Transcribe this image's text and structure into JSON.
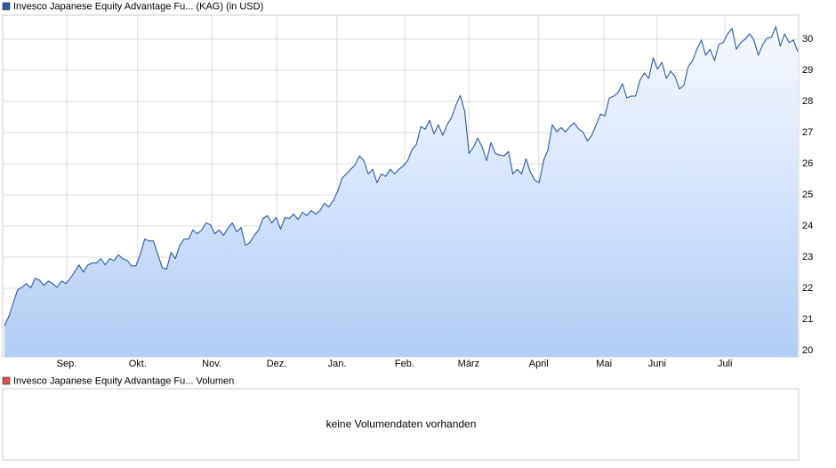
{
  "chart_data": {
    "type": "area",
    "series": [
      {
        "name": "Invesco Japanese Equity Advantage Fu... (KAG) (in USD)",
        "color": "#2a5aa8",
        "values": [
          20.8,
          21.09,
          21.52,
          21.95,
          22.03,
          22.15,
          22.01,
          22.32,
          22.26,
          22.09,
          22.23,
          22.15,
          22.03,
          22.23,
          22.15,
          22.32,
          22.52,
          22.75,
          22.52,
          22.75,
          22.81,
          22.81,
          22.95,
          22.75,
          22.95,
          22.89,
          23.07,
          22.95,
          22.89,
          22.72,
          22.72,
          23.09,
          23.58,
          23.52,
          23.52,
          23.09,
          22.66,
          22.61,
          23.15,
          22.95,
          23.38,
          23.58,
          23.58,
          23.87,
          23.75,
          23.87,
          24.1,
          24.04,
          23.75,
          23.87,
          23.7,
          23.93,
          24.1,
          23.81,
          23.95,
          23.38,
          23.47,
          23.7,
          23.87,
          24.24,
          24.33,
          24.1,
          24.27,
          23.9,
          24.27,
          24.24,
          24.38,
          24.21,
          24.44,
          24.33,
          24.5,
          24.38,
          24.5,
          24.73,
          24.61,
          24.81,
          25.1,
          25.53,
          25.67,
          25.82,
          25.96,
          26.25,
          26.1,
          25.67,
          25.82,
          25.39,
          25.67,
          25.59,
          25.82,
          25.67,
          25.82,
          25.93,
          26.1,
          26.45,
          26.62,
          27.19,
          27.11,
          27.39,
          26.96,
          27.25,
          26.91,
          27.25,
          27.48,
          27.88,
          28.19,
          27.68,
          26.33,
          26.53,
          26.82,
          26.53,
          26.1,
          26.68,
          26.33,
          26.28,
          26.25,
          26.39,
          25.67,
          25.82,
          25.67,
          26.16,
          25.73,
          25.47,
          25.39,
          26.1,
          26.45,
          27.25,
          27.02,
          27.16,
          27.02,
          27.19,
          27.31,
          27.11,
          27.02,
          26.73,
          26.91,
          27.25,
          27.59,
          27.54,
          28.11,
          28.17,
          28.28,
          28.57,
          28.11,
          28.17,
          28.17,
          28.68,
          28.91,
          28.74,
          29.4,
          29.03,
          29.26,
          28.74,
          28.97,
          28.8,
          28.4,
          28.51,
          29.11,
          29.31,
          29.68,
          29.97,
          29.48,
          29.68,
          29.31,
          29.83,
          29.89,
          30.17,
          30.34,
          29.68,
          29.89,
          30.0,
          30.17,
          29.97,
          29.48,
          29.83,
          30.03,
          30.06,
          30.4,
          29.77,
          30.17,
          29.89,
          29.97,
          29.6
        ]
      }
    ],
    "xlim": [
      -0.4,
      181.2
    ],
    "xticks": [
      {
        "value": 14.2,
        "label": "Sep."
      },
      {
        "value": 30.4,
        "label": "Okt."
      },
      {
        "value": 47.3,
        "label": "Nov."
      },
      {
        "value": 62.1,
        "label": "Dez."
      },
      {
        "value": 75.9,
        "label": "Jan."
      },
      {
        "value": 91.3,
        "label": "Feb."
      },
      {
        "value": 105.9,
        "label": "März"
      },
      {
        "value": 121.9,
        "label": "April"
      },
      {
        "value": 136.8,
        "label": "Mai"
      },
      {
        "value": 148.9,
        "label": "Juni"
      },
      {
        "value": 164.4,
        "label": "Juli"
      }
    ],
    "ylim": [
      19.8,
      30.77
    ],
    "yticks": [
      20,
      21,
      22,
      23,
      24,
      25,
      26,
      27,
      28,
      29,
      30
    ],
    "grid": true
  },
  "volume_panel": {
    "legend": "Invesco Japanese Equity Advantage Fu... Volumen",
    "legend_color": "#d9534f",
    "message": "keine Volumendaten vorhanden"
  }
}
